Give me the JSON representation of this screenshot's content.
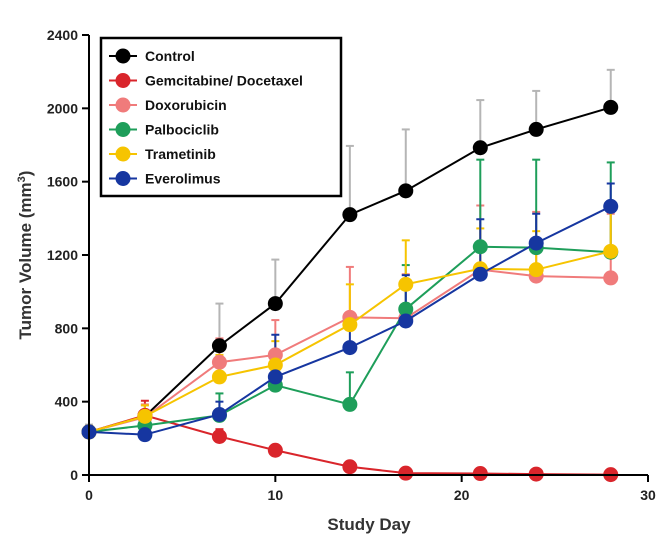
{
  "chart_data": {
    "type": "line",
    "xlabel": "Study Day",
    "ylabel_main": "Tumor Volume (mm",
    "ylabel_sup": "3",
    "ylabel_close": ")",
    "xlim": [
      0,
      30
    ],
    "ylim": [
      0,
      2400
    ],
    "xticks": [
      0,
      10,
      20,
      30
    ],
    "yticks": [
      0,
      400,
      800,
      1200,
      1600,
      2000,
      2400
    ],
    "grid": false,
    "legend_position": "top-left",
    "series": [
      {
        "name": "Control",
        "color": "#000000",
        "errorbar_color": "#b5b5b5",
        "x": [
          0,
          3,
          7,
          10,
          14,
          17,
          21,
          24,
          28
        ],
        "y": [
          235,
          320,
          705,
          935,
          1420,
          1550,
          1785,
          1885,
          2005
        ],
        "err": [
          40,
          60,
          230,
          240,
          375,
          335,
          260,
          210,
          205
        ]
      },
      {
        "name": "Gemcitabine/ Docetaxel",
        "color": "#d9252b",
        "errorbar_color": "#d9252b",
        "x": [
          0,
          3,
          7,
          10,
          14,
          17,
          21,
          24,
          28
        ],
        "y": [
          235,
          325,
          210,
          135,
          45,
          10,
          8,
          5,
          2
        ],
        "err": [
          30,
          80,
          40,
          20,
          10,
          5,
          5,
          5,
          3
        ]
      },
      {
        "name": "Doxorubicin",
        "color": "#f07b7b",
        "errorbar_color": "#f07b7b",
        "x": [
          0,
          3,
          7,
          10,
          14,
          17,
          21,
          24,
          28
        ],
        "y": [
          235,
          315,
          615,
          655,
          860,
          855,
          1120,
          1085,
          1075
        ],
        "err": [
          30,
          70,
          130,
          190,
          275,
          240,
          350,
          350,
          350
        ]
      },
      {
        "name": "Palbociclib",
        "color": "#1e9e5a",
        "errorbar_color": "#1e9e5a",
        "x": [
          0,
          3,
          7,
          10,
          14,
          17,
          21,
          24,
          28
        ],
        "y": [
          235,
          270,
          325,
          490,
          385,
          905,
          1245,
          1240,
          1215
        ],
        "err": [
          30,
          50,
          120,
          120,
          175,
          240,
          475,
          480,
          490
        ]
      },
      {
        "name": "Trametinib",
        "color": "#f6c400",
        "errorbar_color": "#f6c400",
        "x": [
          0,
          3,
          7,
          10,
          14,
          17,
          21,
          24,
          28
        ],
        "y": [
          235,
          320,
          535,
          600,
          820,
          1040,
          1125,
          1120,
          1220
        ],
        "err": [
          30,
          60,
          120,
          130,
          220,
          240,
          220,
          210,
          220
        ]
      },
      {
        "name": "Everolimus",
        "color": "#1636a0",
        "errorbar_color": "#1636a0",
        "x": [
          0,
          3,
          7,
          10,
          14,
          17,
          21,
          24,
          28
        ],
        "y": [
          235,
          220,
          330,
          535,
          695,
          840,
          1095,
          1265,
          1465
        ],
        "err": [
          30,
          40,
          70,
          230,
          160,
          250,
          300,
          160,
          125
        ]
      }
    ]
  }
}
